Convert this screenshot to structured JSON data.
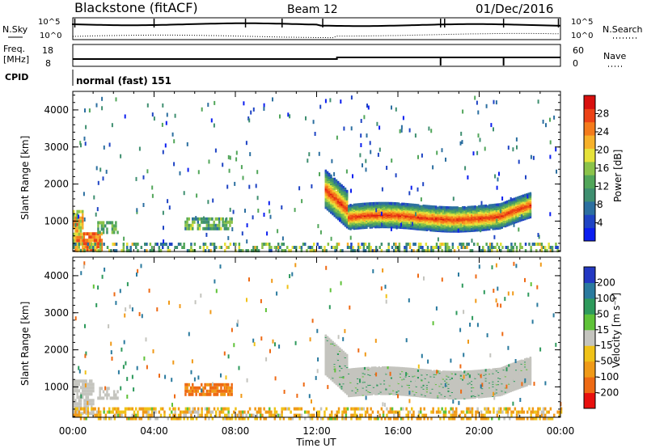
{
  "header": {
    "title": "Blackstone (fitACF)",
    "beam": "Beam 12",
    "date": "01/Dec/2016"
  },
  "top_panel": {
    "left_label": "N.Sky",
    "right_label": "N.Search",
    "left_ticks": [
      "10^5",
      "10^0"
    ],
    "right_ticks": [
      "10^5",
      "10^0"
    ]
  },
  "freq_panel": {
    "left_label": "Freq.",
    "left_unit": "[MHz]",
    "right_label": "Nave",
    "left_ticks": [
      "18",
      "8"
    ],
    "right_ticks": [
      "60",
      "0"
    ]
  },
  "cpid": {
    "label": "CPID",
    "value": "normal (fast) 151"
  },
  "time_axis": {
    "label": "Time UT",
    "ticks": [
      "00:00",
      "04:00",
      "08:00",
      "12:00",
      "16:00",
      "20:00",
      "00:00"
    ]
  },
  "power_colorbar": {
    "label": "Power [dB]",
    "ticks": [
      "4",
      "8",
      "12",
      "16",
      "20",
      "24",
      "28"
    ],
    "colors": [
      "#0b1ef0",
      "#1f44c4",
      "#2c6fa0",
      "#3f8f70",
      "#52a65a",
      "#8bc34a",
      "#e6e23a",
      "#f7b12a",
      "#f47b1c",
      "#ec4216",
      "#d8100e"
    ]
  },
  "velocity_colorbar": {
    "label": "Velocity [m s⁻¹]",
    "ticks": [
      "200",
      "100",
      "50",
      "15",
      "-15",
      "-50",
      "-100",
      "-200"
    ],
    "colors": [
      "#2338c2",
      "#2a7a9e",
      "#2e9a5c",
      "#5fc238",
      "#c4c4be",
      "#f0c218",
      "#f09a18",
      "#ee6a14",
      "#e8100e"
    ]
  },
  "chart_data": [
    {
      "type": "heatmap",
      "title": "Power",
      "xlabel": "Time UT",
      "ylabel": "Slant Range [km]",
      "xlim": [
        0,
        24
      ],
      "ylim": [
        180,
        4500
      ],
      "y_ticks": [
        1000,
        2000,
        3000,
        4000
      ],
      "colorbar": {
        "label": "Power [dB]",
        "range": [
          0,
          32
        ]
      },
      "regions": [
        {
          "t": [
            0.0,
            0.5
          ],
          "range": [
            200,
            1300
          ],
          "value": 28
        },
        {
          "t": [
            0.5,
            1.3
          ],
          "range": [
            200,
            700
          ],
          "value": 26
        },
        {
          "t": [
            1.2,
            2.2
          ],
          "range": [
            700,
            1000
          ],
          "value": 12
        },
        {
          "t": [
            5.5,
            7.8
          ],
          "range": [
            800,
            1100
          ],
          "value": 10
        },
        {
          "t": [
            12.4,
            22.6
          ],
          "range": [
            900,
            2400
          ],
          "value": 26
        },
        {
          "t": [
            0.0,
            24.0
          ],
          "range": [
            180,
            400
          ],
          "value": 10
        }
      ]
    },
    {
      "type": "heatmap",
      "title": "Velocity",
      "xlabel": "Time UT",
      "ylabel": "Slant Range [km]",
      "xlim": [
        0,
        24
      ],
      "ylim": [
        180,
        4500
      ],
      "y_ticks": [
        1000,
        2000,
        3000,
        4000
      ],
      "colorbar": {
        "label": "Velocity [m s⁻¹]",
        "range": [
          -200,
          200
        ]
      },
      "regions": [
        {
          "t": [
            0.0,
            1.0
          ],
          "range": [
            300,
            1200
          ],
          "value": 0
        },
        {
          "t": [
            1.2,
            2.2
          ],
          "range": [
            700,
            1000
          ],
          "value": 0
        },
        {
          "t": [
            5.5,
            7.8
          ],
          "range": [
            800,
            1100
          ],
          "value": -80
        },
        {
          "t": [
            12.4,
            22.6
          ],
          "range": [
            900,
            2400
          ],
          "value": 0
        },
        {
          "t": [
            0.0,
            24.0
          ],
          "range": [
            180,
            450
          ],
          "value": -30
        }
      ]
    }
  ]
}
